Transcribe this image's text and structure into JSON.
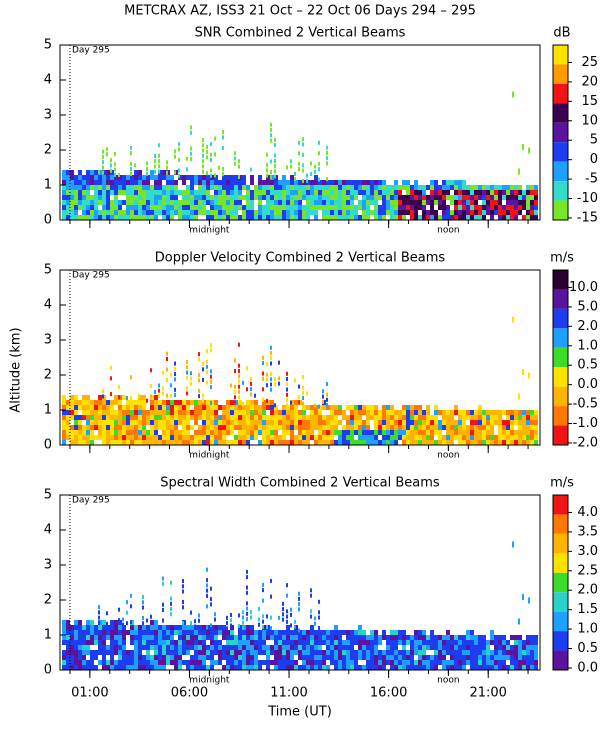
{
  "title": "METCRAX AZ, ISS3  21 Oct – 22 Oct 06 Days 294 – 295",
  "y_axis_label": "Altitude (km)",
  "x_axis_label": "Time (UT)",
  "xlim": [
    23.5,
    47.6
  ],
  "xticks": [
    {
      "value": 25,
      "label": "01:00"
    },
    {
      "value": 30,
      "label": "06:00"
    },
    {
      "value": 35,
      "label": "11:00"
    },
    {
      "value": 40,
      "label": "16:00"
    },
    {
      "value": 45,
      "label": "21:00"
    }
  ],
  "annotations": [
    {
      "value": 24,
      "label": "Day 295"
    },
    {
      "value": 31,
      "label": "midnight"
    },
    {
      "value": 43,
      "label": "noon"
    }
  ],
  "chart_data": [
    {
      "type": "heatmap",
      "title": "SNR Combined 2 Vertical Beams",
      "ylim": [
        0,
        5
      ],
      "yticks": [
        0,
        1,
        2,
        3,
        4,
        5
      ],
      "colorbar": {
        "unit": "dB",
        "ticks": [
          25,
          20,
          15,
          10,
          5,
          0,
          -5,
          -10,
          -15
        ],
        "colors": [
          "#ffe100",
          "#ff9a00",
          "#f01414",
          "#3c0050",
          "#5a14a0",
          "#1e3cf0",
          "#1ea0ff",
          "#32dcc8",
          "#78e628"
        ]
      }
    },
    {
      "type": "heatmap",
      "title": "Doppler Velocity Combined 2 Vertical Beams",
      "ylim": [
        0,
        5
      ],
      "yticks": [
        0,
        1,
        2,
        3,
        4,
        5
      ],
      "colorbar": {
        "unit": "m/s",
        "ticks": [
          {
            "value": 10,
            "label": "10.0"
          },
          {
            "value": 5,
            "label": "5.0"
          },
          {
            "value": 2,
            "label": "2.0"
          },
          {
            "value": 1,
            "label": "1.0"
          },
          0.5,
          {
            "value": 0,
            "label": "0.0"
          },
          -0.5,
          {
            "value": -1,
            "label": "-1.0"
          },
          {
            "value": -2,
            "label": "-2.0"
          }
        ],
        "colors": [
          "#2a0030",
          "#5a14a0",
          "#1e3cf0",
          "#1ea0ff",
          "#3cdc28",
          "#ffe100",
          "#ffb400",
          "#ff7800",
          "#f01414"
        ]
      }
    },
    {
      "type": "heatmap",
      "title": "Spectral Width Combined 2 Vertical Beams",
      "ylim": [
        0,
        5
      ],
      "yticks": [
        0,
        1,
        2,
        3,
        4,
        5
      ],
      "colorbar": {
        "unit": "m/s",
        "ticks": [
          {
            "value": 4,
            "label": "4.0"
          },
          3.5,
          {
            "value": 3,
            "label": "3.0"
          },
          2.5,
          {
            "value": 2,
            "label": "2.0"
          },
          1.5,
          {
            "value": 1,
            "label": "1.0"
          },
          0.5,
          {
            "value": 0,
            "label": "0.0"
          }
        ],
        "colors": [
          "#f01414",
          "#ff7800",
          "#ffb400",
          "#ffe100",
          "#3cdc28",
          "#28d2c8",
          "#1ea0ff",
          "#1e3cf0",
          "#5a14a0"
        ]
      }
    }
  ]
}
